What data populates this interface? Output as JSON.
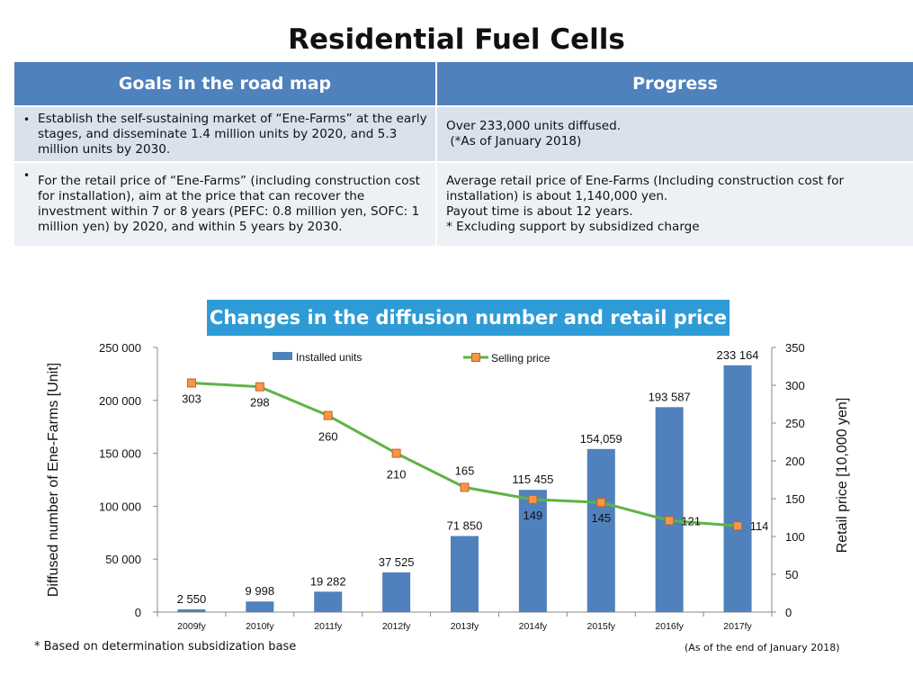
{
  "title": "Residential Fuel Cells",
  "table": {
    "headers": [
      "Goals in the road map",
      "Progress"
    ],
    "rows": [
      {
        "goal": "Establish the self-sustaining market of “Ene-Farms” at the early stages, and disseminate 1.4 million units by 2020, and 5.3 million units by 2030.",
        "progress": [
          "Over 233,000 units diffused.",
          " (*As of January 2018)"
        ]
      },
      {
        "goal": "For the retail price of “Ene-Farms” (including construction cost for installation), aim at the price that can recover the investment within 7 or 8 years (PEFC: 0.8 million yen, SOFC: 1 million yen) by 2020, and within 5 years by 2030.",
        "progress": [
          "Average retail price of Ene-Farms (Including construction cost for installation) is about 1,140,000 yen.",
          "Payout time is about 12 years.",
          "* Excluding support by subsidized charge"
        ]
      }
    ]
  },
  "chart_title": "Changes in the diffusion number and retail price",
  "footnote_left": "* Based on determination subsidization base",
  "footnote_right": "(As of the end of January 2018)",
  "chart_data": {
    "type": "bar+line",
    "categories": [
      "2009fy",
      "2010fy",
      "2011fy",
      "2012fy",
      "2013fy",
      "2014fy",
      "2015fy",
      "2016fy",
      "2017fy"
    ],
    "series": [
      {
        "name": "Installed units",
        "type": "bar",
        "axis": "left",
        "color": "#4f81bd",
        "values": [
          2550,
          9998,
          19282,
          37525,
          71850,
          115455,
          154059,
          193587,
          233164
        ],
        "labels": [
          "2 550",
          "9 998",
          "19 282",
          "37 525",
          "71 850",
          "115 455",
          "154,059",
          "193 587",
          "233 164"
        ]
      },
      {
        "name": "Selling price",
        "type": "line",
        "axis": "right",
        "line_color": "#5fb346",
        "marker_color": "#f79646",
        "values": [
          303,
          298,
          260,
          210,
          165,
          149,
          145,
          121,
          114
        ],
        "labels": [
          "303",
          "298",
          "260",
          "210",
          "165",
          "149",
          "145",
          "121",
          "114"
        ]
      }
    ],
    "y_left": {
      "label": "Diffused number of Ene-Farms [Unit]",
      "range": [
        0,
        250000
      ],
      "ticks": [
        0,
        50000,
        100000,
        150000,
        200000,
        250000
      ],
      "tick_labels": [
        "0",
        "50 000",
        "100 000",
        "150 000",
        "200 000",
        "250 000"
      ]
    },
    "y_right": {
      "label": "Retail price [10,000 yen]",
      "range": [
        0,
        350
      ],
      "ticks": [
        0,
        50,
        100,
        150,
        200,
        250,
        300,
        350
      ],
      "tick_labels": [
        "0",
        "50",
        "100",
        "150",
        "200",
        "250",
        "300",
        "350"
      ]
    },
    "legend_position": "top",
    "grid": false
  }
}
